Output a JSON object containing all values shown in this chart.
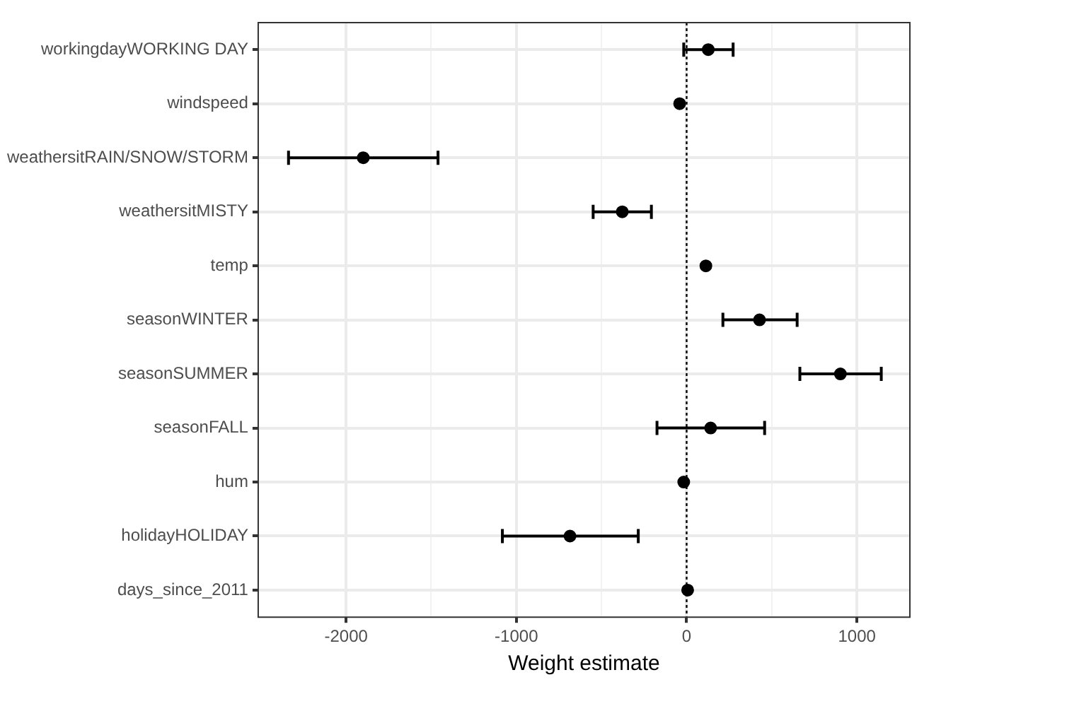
{
  "chart_data": {
    "type": "scatter",
    "orientation": "horizontal",
    "xlabel": "Weight estimate",
    "categories": [
      "workingdayWORKING DAY",
      "windspeed",
      "weathersitRAIN/SNOW/STORM",
      "weathersitMISTY",
      "temp",
      "seasonWINTER",
      "seasonSUMMER",
      "seasonFALL",
      "hum",
      "holidayHOLIDAY",
      "days_since_2011"
    ],
    "values": [
      127,
      -41,
      -1899,
      -378,
      113,
      428,
      903,
      141,
      -17,
      -685,
      6
    ],
    "errors": [
      [
        -17,
        273
      ],
      null,
      [
        -2338,
        -1460
      ],
      [
        -549,
        -207
      ],
      null,
      [
        213,
        649
      ],
      [
        665,
        1143
      ],
      [
        -174,
        458
      ],
      null,
      [
        -1082,
        -284
      ],
      null
    ],
    "color": "#000000",
    "marker": "circle",
    "xlim": [
      -2516,
      1311
    ],
    "xticks": [
      -2000,
      {
        "value": -1500,
        "label": null
      },
      -1000,
      {
        "value": -500,
        "label": null
      },
      0,
      {
        "value": 500,
        "label": null
      },
      1000
    ],
    "ref_lines": [
      {
        "axis": "x",
        "value": 0,
        "line_style": "dotted",
        "color": "#000000"
      }
    ],
    "grid": true,
    "legend": false
  }
}
